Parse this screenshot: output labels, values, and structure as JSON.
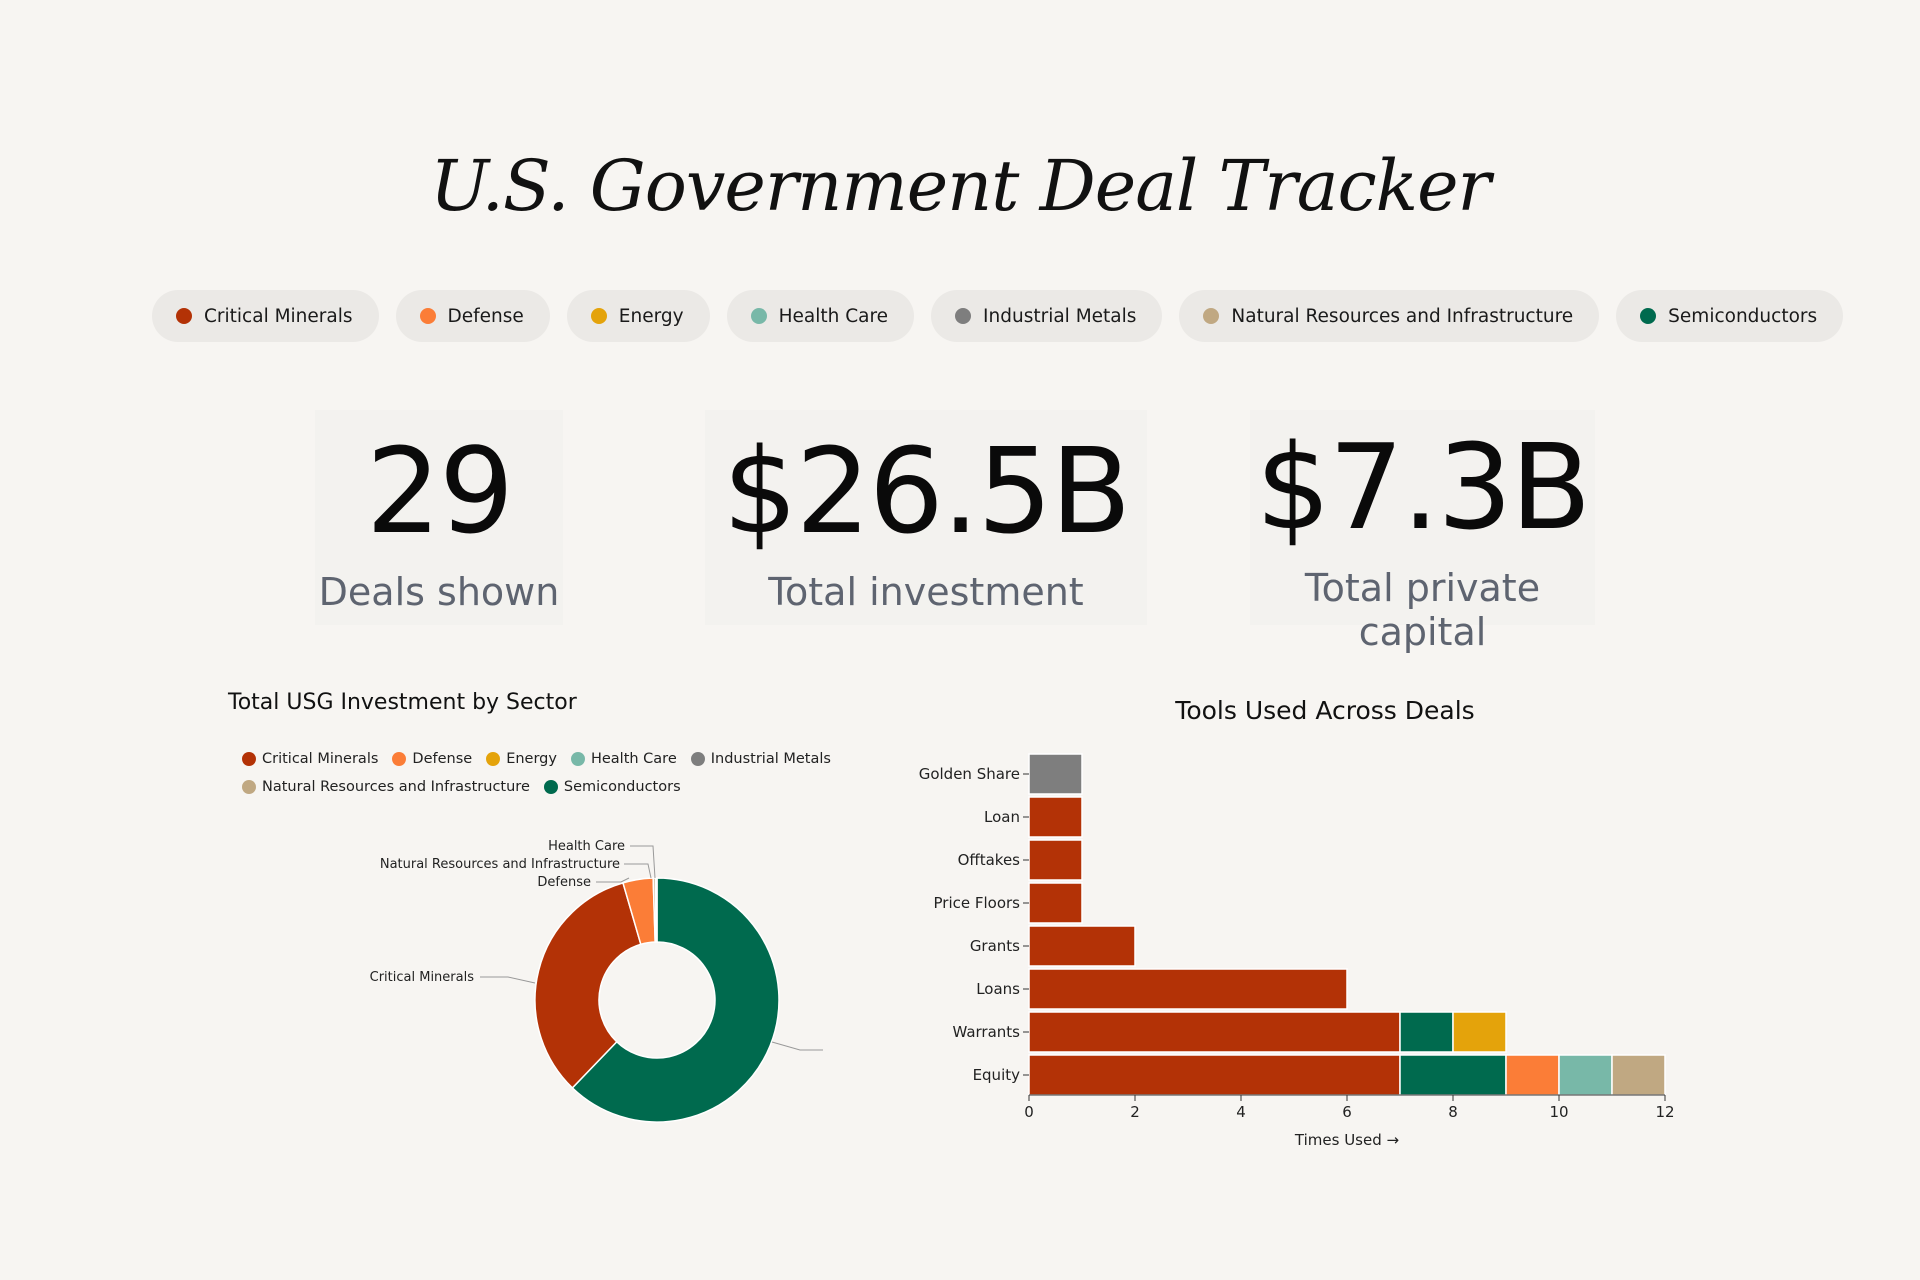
{
  "header": {
    "title": "U.S. Government Deal Tracker"
  },
  "filters": [
    {
      "label": "Critical Minerals",
      "color": "#b33206"
    },
    {
      "label": "Defense",
      "color": "#fb7d37"
    },
    {
      "label": "Energy",
      "color": "#e4a30b"
    },
    {
      "label": "Health Care",
      "color": "#78b8a8"
    },
    {
      "label": "Industrial Metals",
      "color": "#7e7e7e"
    },
    {
      "label": "Natural Resources and Infrastructure",
      "color": "#c0a882"
    },
    {
      "label": "Semiconductors",
      "color": "#006a4e"
    }
  ],
  "stats": {
    "deals": {
      "value": "29",
      "label": "Deals shown"
    },
    "investment": {
      "value": "$26.5B",
      "label": "Total investment"
    },
    "private": {
      "value": "$7.3B",
      "label": "Total private capital"
    }
  },
  "chart_data": [
    {
      "type": "pie",
      "title": "Total USG Investment by Sector",
      "legend": [
        "Critical Minerals",
        "Defense",
        "Energy",
        "Health Care",
        "Industrial Metals",
        "Natural Resources and Infrastructure",
        "Semiconductors"
      ],
      "slices": [
        {
          "name": "Semiconductors",
          "value": 62.2,
          "color": "#006a4e"
        },
        {
          "name": "Critical Minerals",
          "value": 33.3,
          "color": "#b33206"
        },
        {
          "name": "Defense",
          "value": 4.0,
          "color": "#fb7d37"
        },
        {
          "name": "Natural Resources and Infrastructure",
          "value": 0.3,
          "color": "#c0a882"
        },
        {
          "name": "Health Care",
          "value": 0.2,
          "color": "#78b8a8"
        }
      ],
      "callouts": [
        "Health Care",
        "Natural Resources and Infrastructure",
        "Defense",
        "Critical Minerals"
      ]
    },
    {
      "type": "bar",
      "title": "Tools Used Across Deals",
      "xlabel": "Times Used →",
      "xlim": [
        0,
        12
      ],
      "xticks": [
        0,
        2,
        4,
        6,
        8,
        10,
        12
      ],
      "categories": [
        "Golden Share",
        "Loan",
        "Offtakes",
        "Price Floors",
        "Grants",
        "Loans",
        "Warrants",
        "Equity"
      ],
      "series": [
        {
          "name": "Critical Minerals",
          "color": "#b33206",
          "values": [
            0,
            1,
            1,
            1,
            2,
            6,
            7,
            7
          ]
        },
        {
          "name": "Industrial Metals",
          "color": "#7e7e7e",
          "values": [
            1,
            0,
            0,
            0,
            0,
            0,
            0,
            0
          ]
        },
        {
          "name": "Semiconductors",
          "color": "#006a4e",
          "values": [
            0,
            0,
            0,
            0,
            0,
            0,
            1,
            2
          ]
        },
        {
          "name": "Energy",
          "color": "#e4a30b",
          "values": [
            0,
            0,
            0,
            0,
            0,
            0,
            1,
            0
          ]
        },
        {
          "name": "Defense",
          "color": "#fb7d37",
          "values": [
            0,
            0,
            0,
            0,
            0,
            0,
            0,
            1
          ]
        },
        {
          "name": "Health Care",
          "color": "#78b8a8",
          "values": [
            0,
            0,
            0,
            0,
            0,
            0,
            0,
            1
          ]
        },
        {
          "name": "Natural Resources and Infrastructure",
          "color": "#c0a882",
          "values": [
            0,
            0,
            0,
            0,
            0,
            0,
            0,
            1
          ]
        }
      ]
    }
  ]
}
